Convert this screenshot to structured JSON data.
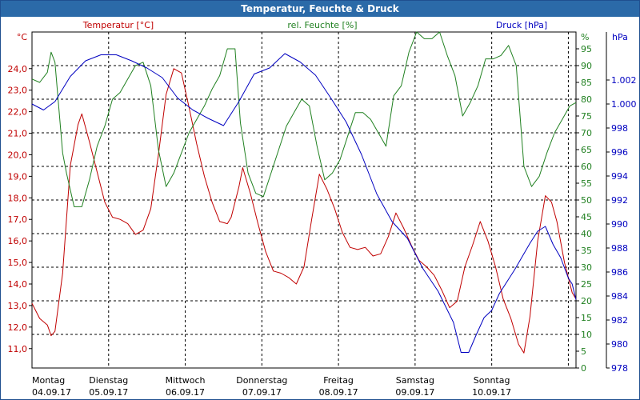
{
  "window": {
    "title": "Temperatur, Feuchte & Druck"
  },
  "colors": {
    "temperature": "#c00000",
    "humidity": "#208020",
    "pressure": "#0000c0",
    "titlebar": "#2b6aa8"
  },
  "chart_data": {
    "type": "line",
    "title": "Temperatur, Feuchte & Druck",
    "grid": true,
    "axes": {
      "left": {
        "unit": "°C",
        "header": "Temperatur [°C]",
        "range": [
          10.1,
          25.7
        ],
        "ticks": [
          "11,0",
          "12,0",
          "13,0",
          "14,0",
          "15,0",
          "16,0",
          "17,0",
          "18,0",
          "19,0",
          "20,0",
          "21,0",
          "22,0",
          "23,0",
          "24,0"
        ]
      },
      "middle": {
        "unit": "%",
        "header": "rel. Feuchte [%]",
        "range": [
          0,
          100
        ],
        "ticks": [
          "0",
          "5",
          "10",
          "15",
          "20",
          "25",
          "30",
          "35",
          "40",
          "45",
          "50",
          "55",
          "60",
          "65",
          "70",
          "75",
          "80",
          "85",
          "90",
          "95"
        ]
      },
      "right": {
        "unit": "hPa",
        "header": "Druck [hPa]",
        "range": [
          978,
          1006
        ],
        "ticks": [
          "978",
          "980",
          "982",
          "984",
          "986",
          "988",
          "990",
          "992",
          "994",
          "996",
          "998",
          "1.000",
          "1.002"
        ]
      }
    },
    "x_labels": [
      {
        "day": "Montag",
        "date": "04.09.17"
      },
      {
        "day": "Dienstag",
        "date": "05.09.17"
      },
      {
        "day": "Mittwoch",
        "date": "06.09.17"
      },
      {
        "day": "Donnerstag",
        "date": "07.09.17"
      },
      {
        "day": "Freitag",
        "date": "08.09.17"
      },
      {
        "day": "Samstag",
        "date": "09.09.17"
      },
      {
        "day": "Sonntag",
        "date": "10.09.17"
      }
    ],
    "x_range_days": [
      0,
      7.1
    ],
    "series": [
      {
        "name": "Temperatur [°C]",
        "axis": "left",
        "points": [
          [
            0,
            13.1
          ],
          [
            0.1,
            12.4
          ],
          [
            0.2,
            12.1
          ],
          [
            0.25,
            11.6
          ],
          [
            0.3,
            11.8
          ],
          [
            0.4,
            14.5
          ],
          [
            0.5,
            19.5
          ],
          [
            0.6,
            21.4
          ],
          [
            0.65,
            21.9
          ],
          [
            0.75,
            20.6
          ],
          [
            0.85,
            19.2
          ],
          [
            0.95,
            17.8
          ],
          [
            1.05,
            17.1
          ],
          [
            1.15,
            17.0
          ],
          [
            1.25,
            16.8
          ],
          [
            1.35,
            16.3
          ],
          [
            1.45,
            16.5
          ],
          [
            1.55,
            17.5
          ],
          [
            1.65,
            20.0
          ],
          [
            1.75,
            22.8
          ],
          [
            1.85,
            24.0
          ],
          [
            1.95,
            23.8
          ],
          [
            2.05,
            22.2
          ],
          [
            2.15,
            20.5
          ],
          [
            2.25,
            19.0
          ],
          [
            2.35,
            17.8
          ],
          [
            2.45,
            16.9
          ],
          [
            2.55,
            16.8
          ],
          [
            2.6,
            17.1
          ],
          [
            2.7,
            18.5
          ],
          [
            2.75,
            19.4
          ],
          [
            2.85,
            18.2
          ],
          [
            2.95,
            16.8
          ],
          [
            3.05,
            15.5
          ],
          [
            3.15,
            14.6
          ],
          [
            3.25,
            14.5
          ],
          [
            3.35,
            14.3
          ],
          [
            3.45,
            14.0
          ],
          [
            3.55,
            14.8
          ],
          [
            3.65,
            17.0
          ],
          [
            3.75,
            19.1
          ],
          [
            3.85,
            18.4
          ],
          [
            3.95,
            17.5
          ],
          [
            4.05,
            16.4
          ],
          [
            4.15,
            15.7
          ],
          [
            4.25,
            15.6
          ],
          [
            4.35,
            15.7
          ],
          [
            4.45,
            15.3
          ],
          [
            4.55,
            15.4
          ],
          [
            4.65,
            16.2
          ],
          [
            4.75,
            17.3
          ],
          [
            4.85,
            16.6
          ],
          [
            4.95,
            15.8
          ],
          [
            5.05,
            15.1
          ],
          [
            5.15,
            14.8
          ],
          [
            5.25,
            14.4
          ],
          [
            5.35,
            13.7
          ],
          [
            5.45,
            12.9
          ],
          [
            5.55,
            13.2
          ],
          [
            5.65,
            14.8
          ],
          [
            5.75,
            15.8
          ],
          [
            5.85,
            16.9
          ],
          [
            5.95,
            16.0
          ],
          [
            6.05,
            14.8
          ],
          [
            6.15,
            13.3
          ],
          [
            6.25,
            12.4
          ],
          [
            6.35,
            11.2
          ],
          [
            6.42,
            10.8
          ],
          [
            6.5,
            12.5
          ],
          [
            6.6,
            16.0
          ],
          [
            6.7,
            18.1
          ],
          [
            6.78,
            17.8
          ],
          [
            6.85,
            16.9
          ],
          [
            6.95,
            15.0
          ],
          [
            7.05,
            13.6
          ],
          [
            7.1,
            13.3
          ]
        ]
      },
      {
        "name": "rel. Feuchte [%]",
        "axis": "middle",
        "points": [
          [
            0,
            86
          ],
          [
            0.1,
            85
          ],
          [
            0.2,
            88
          ],
          [
            0.25,
            94
          ],
          [
            0.3,
            91
          ],
          [
            0.4,
            64
          ],
          [
            0.45,
            58
          ],
          [
            0.55,
            48
          ],
          [
            0.65,
            48
          ],
          [
            0.75,
            56
          ],
          [
            0.85,
            66
          ],
          [
            0.95,
            72
          ],
          [
            1.05,
            80
          ],
          [
            1.15,
            82
          ],
          [
            1.25,
            86
          ],
          [
            1.35,
            90
          ],
          [
            1.45,
            91
          ],
          [
            1.55,
            84
          ],
          [
            1.65,
            65
          ],
          [
            1.75,
            54
          ],
          [
            1.85,
            58
          ],
          [
            1.95,
            64
          ],
          [
            2.05,
            70
          ],
          [
            2.15,
            74
          ],
          [
            2.25,
            78
          ],
          [
            2.35,
            83
          ],
          [
            2.45,
            87
          ],
          [
            2.55,
            95
          ],
          [
            2.65,
            95
          ],
          [
            2.72,
            73
          ],
          [
            2.82,
            58
          ],
          [
            2.92,
            52
          ],
          [
            3.02,
            51
          ],
          [
            3.12,
            58
          ],
          [
            3.22,
            65
          ],
          [
            3.32,
            72
          ],
          [
            3.42,
            76
          ],
          [
            3.52,
            80
          ],
          [
            3.62,
            78
          ],
          [
            3.72,
            66
          ],
          [
            3.82,
            56
          ],
          [
            3.92,
            58
          ],
          [
            4.02,
            62
          ],
          [
            4.12,
            69
          ],
          [
            4.22,
            76
          ],
          [
            4.32,
            76
          ],
          [
            4.42,
            74
          ],
          [
            4.52,
            70
          ],
          [
            4.62,
            66
          ],
          [
            4.72,
            81
          ],
          [
            4.82,
            84
          ],
          [
            4.92,
            94
          ],
          [
            5.02,
            100
          ],
          [
            5.12,
            98
          ],
          [
            5.22,
            98
          ],
          [
            5.32,
            100
          ],
          [
            5.42,
            93
          ],
          [
            5.52,
            87
          ],
          [
            5.62,
            75
          ],
          [
            5.72,
            79
          ],
          [
            5.82,
            84
          ],
          [
            5.92,
            92
          ],
          [
            6.02,
            92
          ],
          [
            6.12,
            93
          ],
          [
            6.22,
            96
          ],
          [
            6.32,
            90
          ],
          [
            6.42,
            60
          ],
          [
            6.52,
            54
          ],
          [
            6.62,
            57
          ],
          [
            6.72,
            64
          ],
          [
            6.82,
            70
          ],
          [
            6.92,
            74
          ],
          [
            7.02,
            78
          ],
          [
            7.1,
            79
          ]
        ]
      },
      {
        "name": "Druck [hPa]",
        "axis": "right",
        "points": [
          [
            0,
            1000.0
          ],
          [
            0.15,
            999.5
          ],
          [
            0.3,
            1000.2
          ],
          [
            0.5,
            1002.3
          ],
          [
            0.7,
            1003.6
          ],
          [
            0.9,
            1004.1
          ],
          [
            1.1,
            1004.1
          ],
          [
            1.3,
            1003.6
          ],
          [
            1.5,
            1003.0
          ],
          [
            1.7,
            1002.2
          ],
          [
            1.9,
            1000.5
          ],
          [
            2.1,
            999.5
          ],
          [
            2.3,
            998.8
          ],
          [
            2.5,
            998.2
          ],
          [
            2.7,
            1000.2
          ],
          [
            2.9,
            1002.5
          ],
          [
            3.1,
            1003.0
          ],
          [
            3.3,
            1004.2
          ],
          [
            3.5,
            1003.5
          ],
          [
            3.7,
            1002.4
          ],
          [
            3.9,
            1000.5
          ],
          [
            4.1,
            998.5
          ],
          [
            4.3,
            995.8
          ],
          [
            4.5,
            992.5
          ],
          [
            4.7,
            990.2
          ],
          [
            4.9,
            988.8
          ],
          [
            5.1,
            986.3
          ],
          [
            5.3,
            984.4
          ],
          [
            5.5,
            981.8
          ],
          [
            5.6,
            979.3
          ],
          [
            5.7,
            979.3
          ],
          [
            5.8,
            980.8
          ],
          [
            5.9,
            982.2
          ],
          [
            6.0,
            982.8
          ],
          [
            6.1,
            984.2
          ],
          [
            6.3,
            986.2
          ],
          [
            6.5,
            988.4
          ],
          [
            6.6,
            989.4
          ],
          [
            6.7,
            989.8
          ],
          [
            6.8,
            988.3
          ],
          [
            6.9,
            987.2
          ],
          [
            7.0,
            985.5
          ],
          [
            7.05,
            985.0
          ],
          [
            7.1,
            983.7
          ]
        ]
      }
    ]
  }
}
